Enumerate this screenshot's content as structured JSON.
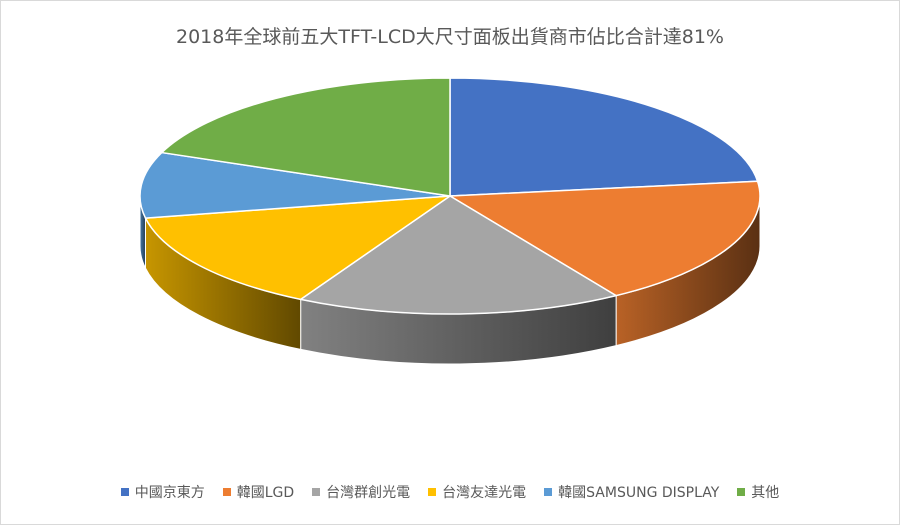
{
  "chart_data": {
    "type": "pie",
    "title": "2018年全球前五大TFT-LCD大尺寸面板出貨商市佔比合計達81%",
    "categories": [
      "中國京東方",
      "韓國LGD",
      "台灣群創光電",
      "台灣友達光電",
      "韓國SAMSUNG DISPLAY",
      "其他"
    ],
    "values": [
      23,
      18,
      17,
      14,
      9,
      19
    ],
    "colors": [
      "#4472c4",
      "#ed7d31",
      "#a5a5a5",
      "#ffc000",
      "#5b9bd5",
      "#70ad47"
    ],
    "legend_position": "bottom",
    "style": "3d"
  }
}
